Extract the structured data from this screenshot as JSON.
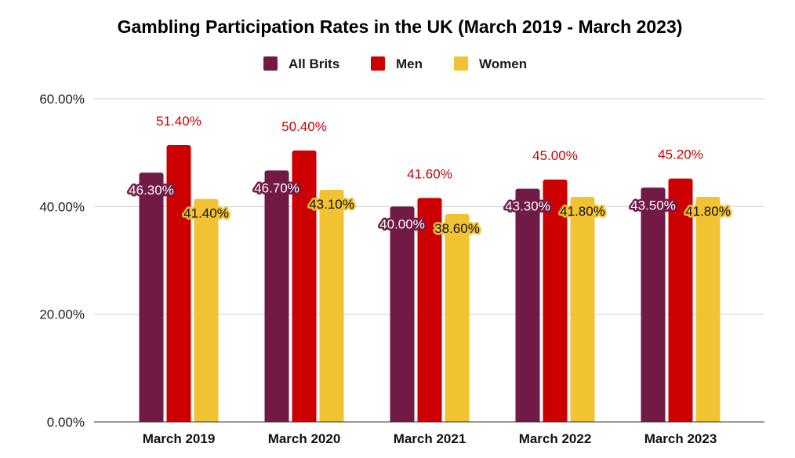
{
  "chart_data": {
    "type": "bar",
    "title": "Gambling Participation Rates in the UK (March 2019 - March 2023)",
    "categories": [
      "March 2019",
      "March 2020",
      "March 2021",
      "March 2022",
      "March 2023"
    ],
    "series": [
      {
        "name": "All Brits",
        "color": "#701a45",
        "values": [
          46.3,
          46.7,
          40.0,
          43.3,
          43.5
        ],
        "labels": [
          "46.30%",
          "46.70%",
          "40.00%",
          "43.30%",
          "43.50%"
        ]
      },
      {
        "name": "Men",
        "color": "#cc0000",
        "values": [
          51.4,
          50.4,
          41.6,
          45.0,
          45.2
        ],
        "labels": [
          "51.40%",
          "50.40%",
          "41.60%",
          "45.00%",
          "45.20%"
        ]
      },
      {
        "name": "Women",
        "color": "#f1c232",
        "values": [
          41.4,
          43.1,
          38.6,
          41.8,
          41.8
        ],
        "labels": [
          "41.40%",
          "43.10%",
          "38.60%",
          "41.80%",
          "41.80%"
        ]
      }
    ],
    "ylim": [
      0,
      60
    ],
    "yticks": [
      0,
      20,
      40,
      60
    ],
    "ytick_labels": [
      "0.00%",
      "20.00%",
      "40.00%",
      "60.00%"
    ],
    "xlabel": "",
    "ylabel": "",
    "grid": true,
    "legend_position": "top-center"
  }
}
